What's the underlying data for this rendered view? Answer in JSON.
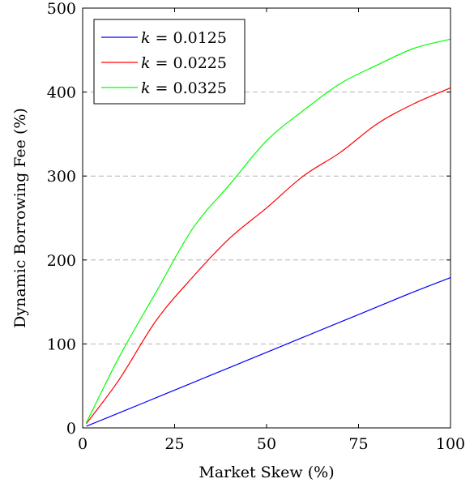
{
  "chart_data": {
    "type": "line",
    "xlabel": "Market Skew (%)",
    "ylabel": "Dynamic Borrowing Fee (%)",
    "xlim": [
      0,
      100
    ],
    "ylim": [
      0,
      500
    ],
    "x_ticks": [
      0,
      25,
      50,
      75,
      100
    ],
    "y_ticks": [
      0,
      100,
      200,
      300,
      400,
      500
    ],
    "grid": "horizontal-dashed",
    "legend_position": "top-left",
    "series": [
      {
        "name": "k = 0.0125",
        "k_symbol": "k",
        "k_value": "= 0.0125",
        "color": "#0000ff",
        "x": [
          1,
          10,
          20,
          30,
          40,
          50,
          60,
          70,
          80,
          90,
          100
        ],
        "y": [
          2,
          18,
          36,
          54,
          72,
          90,
          108,
          126,
          144,
          162,
          179
        ]
      },
      {
        "name": "k = 0.0225",
        "k_symbol": "k",
        "k_value": "= 0.0225",
        "color": "#ff0000",
        "x": [
          1,
          10,
          20,
          30,
          40,
          50,
          60,
          70,
          80,
          90,
          100
        ],
        "y": [
          5,
          58,
          128,
          180,
          226,
          262,
          300,
          328,
          362,
          386,
          405
        ]
      },
      {
        "name": "k = 0.0325",
        "k_symbol": "k",
        "k_value": "= 0.0325",
        "color": "#00ff00",
        "x": [
          1,
          10,
          20,
          30,
          40,
          50,
          60,
          70,
          80,
          90,
          100
        ],
        "y": [
          6,
          85,
          162,
          238,
          290,
          342,
          378,
          410,
          432,
          452,
          463
        ]
      }
    ]
  }
}
